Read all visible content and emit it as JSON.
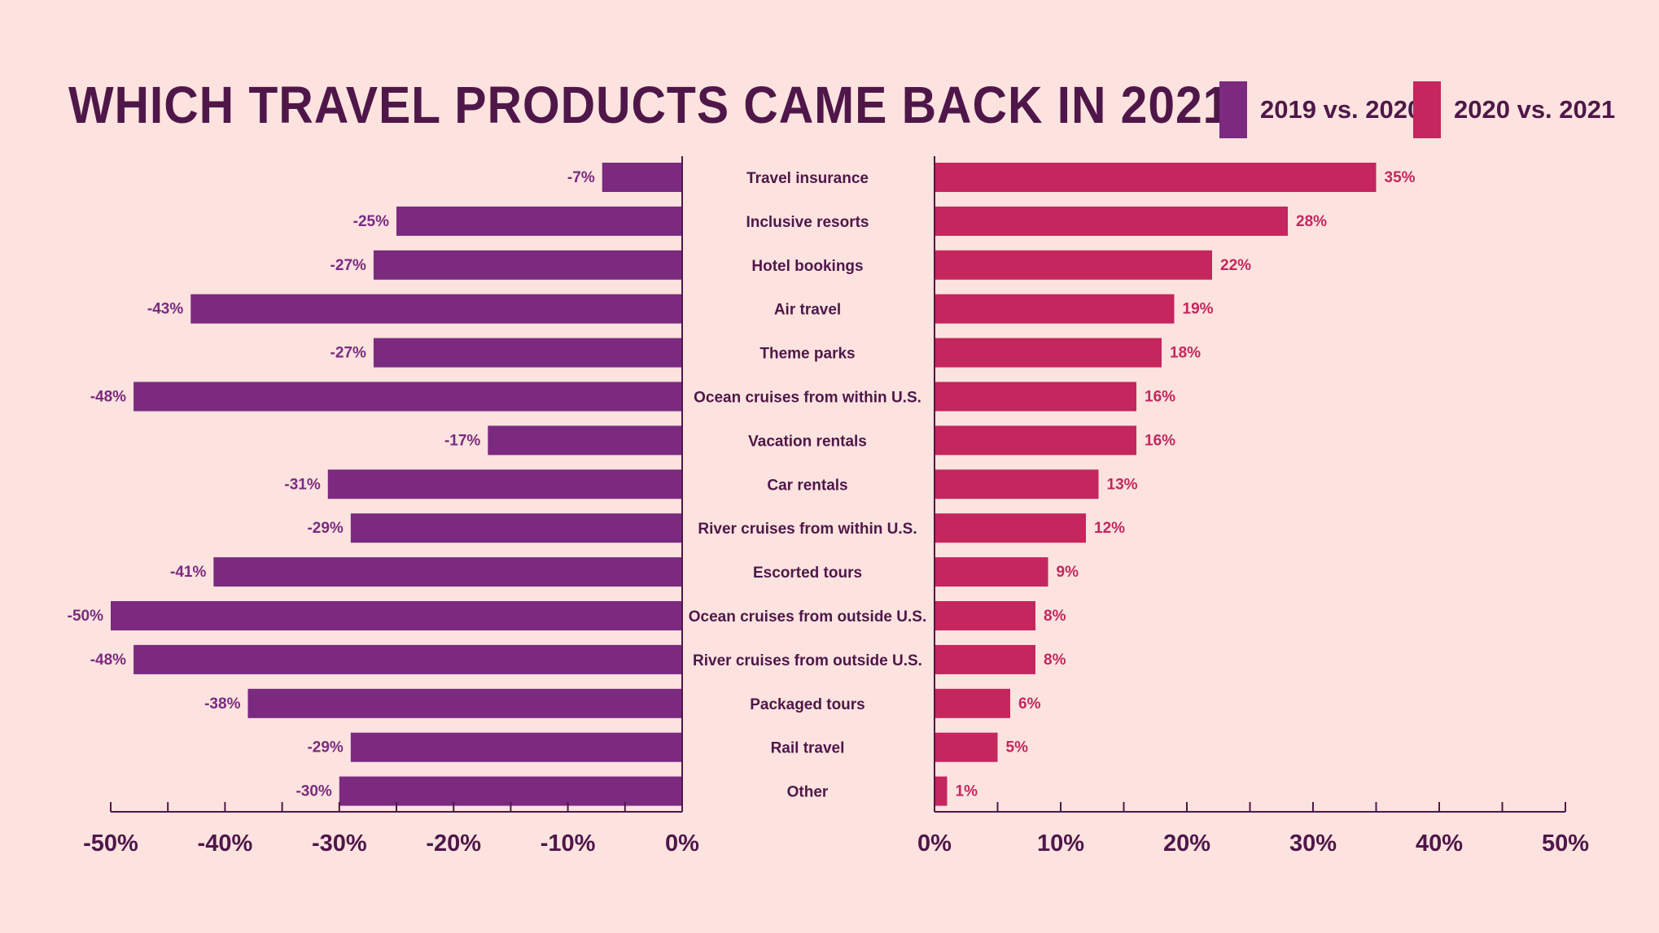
{
  "title": "WHICH TRAVEL PRODUCTS CAME BACK IN 2021",
  "colors": {
    "background": "#fce3df",
    "text": "#4f1749",
    "series1": "#7b2a80",
    "series2": "#c5265e"
  },
  "legend": [
    {
      "label": "2019 vs. 2020",
      "color": "#7b2a80"
    },
    {
      "label": "2020 vs. 2021",
      "color": "#c5265e"
    }
  ],
  "chart_data": {
    "type": "bar",
    "orientation": "horizontal",
    "categories": [
      "Travel insurance",
      "Inclusive resorts",
      "Hotel bookings",
      "Air travel",
      "Theme parks",
      "Ocean cruises from within U.S.",
      "Vacation rentals",
      "Car rentals",
      "River cruises from within U.S.",
      "Escorted tours",
      "Ocean cruises from outside U.S.",
      "River cruises from outside U.S.",
      "Packaged tours",
      "Rail travel",
      "Other"
    ],
    "series": [
      {
        "name": "2019 vs. 2020",
        "values": [
          -7,
          -25,
          -27,
          -43,
          -27,
          -48,
          -17,
          -31,
          -29,
          -41,
          -50,
          -48,
          -38,
          -29,
          -30
        ],
        "labels": [
          "-7%",
          "-25%",
          "-27%",
          "-43%",
          "-27%",
          "-48%",
          "-17%",
          "-31%",
          "-29%",
          "-41%",
          "-50%",
          "-48%",
          "-38%",
          "-29%",
          "-30%"
        ]
      },
      {
        "name": "2020 vs. 2021",
        "values": [
          35,
          28,
          22,
          19,
          18,
          16,
          16,
          13,
          12,
          9,
          8,
          8,
          6,
          5,
          1
        ],
        "labels": [
          "35%",
          "28%",
          "22%",
          "19%",
          "18%",
          "16%",
          "16%",
          "13%",
          "12%",
          "9%",
          "8%",
          "8%",
          "6%",
          "5%",
          "1%"
        ]
      }
    ],
    "left_axis": {
      "range": [
        -50,
        0
      ],
      "ticks": [
        -50,
        -40,
        -30,
        -20,
        -10,
        0
      ],
      "tick_labels": [
        "-50%",
        "-40%",
        "-30%",
        "-20%",
        "-10%",
        "0%"
      ]
    },
    "right_axis": {
      "range": [
        0,
        50
      ],
      "ticks": [
        0,
        10,
        20,
        30,
        40,
        50
      ],
      "tick_labels": [
        "0%",
        "10%",
        "20%",
        "30%",
        "40%",
        "50%"
      ]
    },
    "grid": false,
    "legend_position": "top-right"
  }
}
